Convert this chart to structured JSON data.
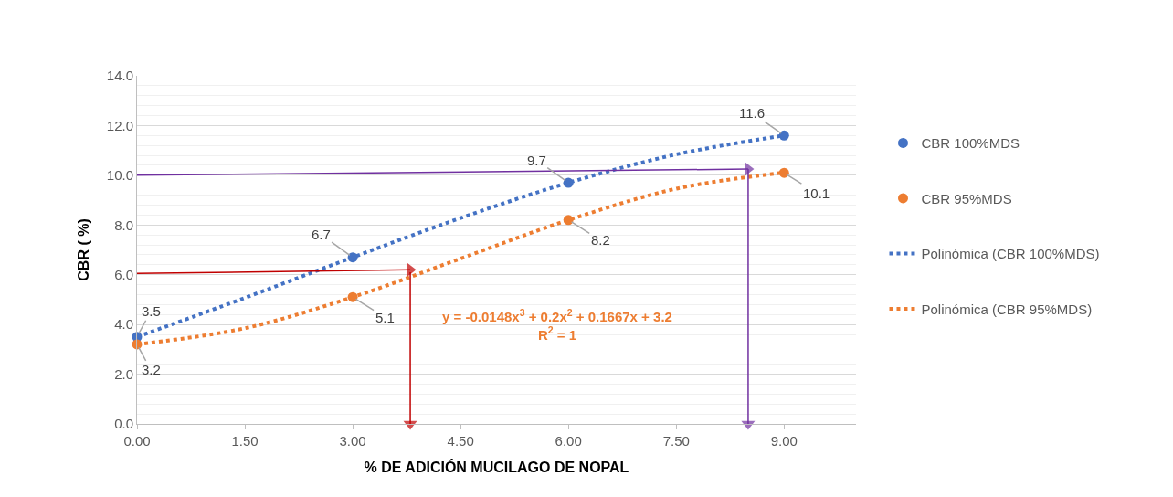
{
  "chart_data": {
    "type": "scatter",
    "xlabel": "% DE ADICIÓN MUCILAGO DE NOPAL",
    "ylabel": "CBR ( %)",
    "x": [
      0,
      3,
      6,
      9
    ],
    "series": [
      {
        "name": "CBR 100%MDS",
        "color": "#4472c4",
        "values": [
          3.5,
          6.7,
          9.7,
          11.6
        ],
        "value_labels": [
          "3.5",
          "6.7",
          "9.7",
          "11.6"
        ],
        "marker": "circle"
      },
      {
        "name": "CBR 95%MDS",
        "color": "#ed7d31",
        "values": [
          3.2,
          5.1,
          8.2,
          10.1
        ],
        "value_labels": [
          "3.2",
          "5.1",
          "8.2",
          "10.1"
        ],
        "marker": "circle"
      },
      {
        "name": "Polinómica (CBR 100%MDS)",
        "type": "line",
        "line_style": "dotted",
        "color": "#4472c4",
        "x": [
          0,
          1.5,
          3,
          4.5,
          6,
          7.5,
          9
        ],
        "values": [
          3.5,
          5.07,
          6.7,
          8.28,
          9.7,
          10.84,
          11.6
        ]
      },
      {
        "name": "Polinómica (CBR 95%MDS)",
        "type": "line",
        "line_style": "dotted",
        "color": "#ed7d31",
        "x": [
          0,
          1.5,
          3,
          4.5,
          6,
          7.5,
          9
        ],
        "values": [
          3.2,
          3.85,
          5.1,
          6.65,
          8.2,
          9.46,
          10.11
        ]
      },
      {
        "type": "line",
        "line_style": "solid",
        "marker": "triangle",
        "color": "#c00000",
        "x": [
          0,
          3.8
        ],
        "values": [
          6.05,
          6.2
        ]
      },
      {
        "type": "line",
        "line_style": "solid",
        "marker": "triangle",
        "color": "#c00000",
        "x": [
          3.8,
          3.8
        ],
        "values": [
          6.1,
          0
        ]
      },
      {
        "type": "line",
        "line_style": "solid",
        "marker": "triangle",
        "color": "#7030a0",
        "x": [
          0,
          8.5
        ],
        "values": [
          10.0,
          10.25
        ]
      },
      {
        "type": "line",
        "line_style": "solid",
        "marker": "triangle",
        "color": "#7030a0",
        "x": [
          8.5,
          8.5
        ],
        "values": [
          10.25,
          0
        ]
      }
    ],
    "annotations": [
      "y = -0.0148x$^{3}$ + 0.2x$^{2}$ + 0.1667x + 3.2\nR$^{2}$ = 1"
    ],
    "xlim": [
      0,
      10
    ],
    "xticks": [
      {
        "value": 0,
        "label": "0.00"
      },
      {
        "value": 1.5,
        "label": "1.50"
      },
      {
        "value": 3,
        "label": "3.00"
      },
      {
        "value": 4.5,
        "label": "4.50"
      },
      {
        "value": 6,
        "label": "6.00"
      },
      {
        "value": 7.5,
        "label": "7.50"
      },
      {
        "value": 9,
        "label": "9.00"
      }
    ],
    "ylim": [
      0,
      14
    ],
    "yticks": [
      {
        "value": 0,
        "label": "0.0"
      },
      {
        "value": 2,
        "label": "2.0"
      },
      {
        "value": 4,
        "label": "4.0"
      },
      {
        "value": 6,
        "label": "6.0"
      },
      {
        "value": 8,
        "label": "8.0"
      },
      {
        "value": 10,
        "label": "10.0"
      },
      {
        "value": 12,
        "label": "12.0"
      },
      {
        "value": 14,
        "label": "14.0"
      }
    ],
    "grid": "y",
    "legend": "right"
  }
}
